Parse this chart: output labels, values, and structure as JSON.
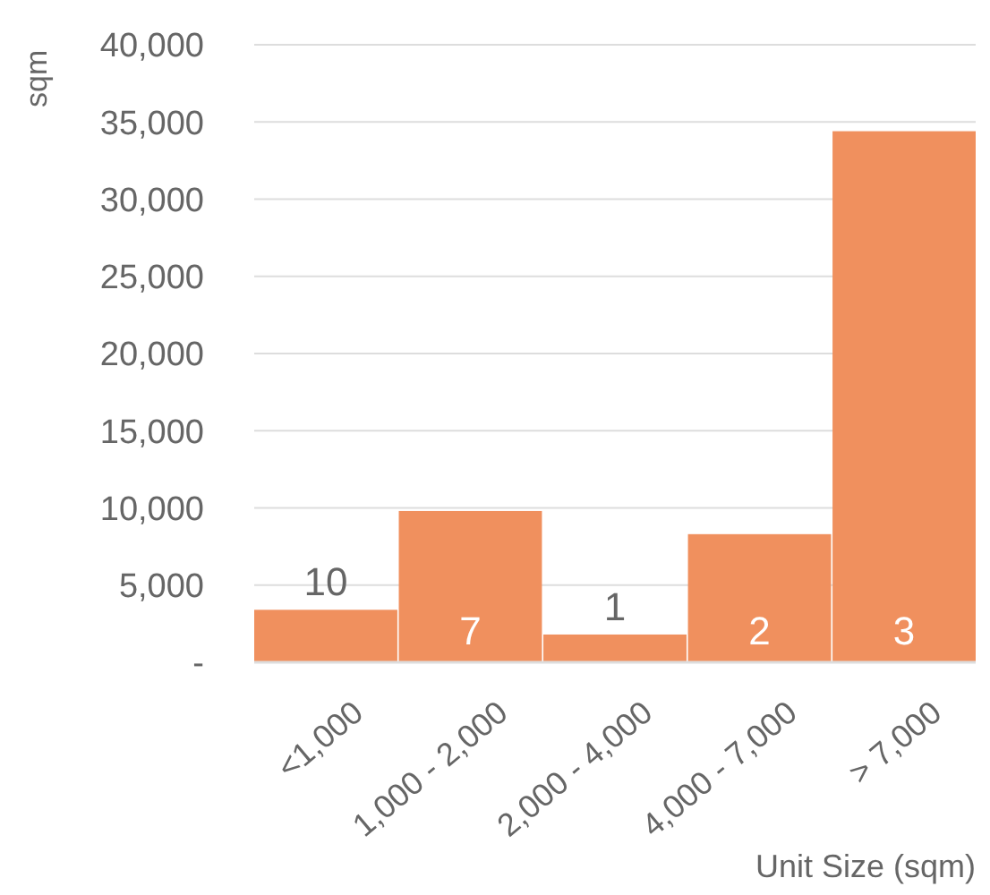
{
  "chart_data": {
    "type": "bar",
    "xlabel": "Unit Size (sqm)",
    "ylabel": "sqm",
    "categories": [
      "<1,000",
      "1,000 - 2,000",
      "2,000 - 4,000",
      "4,000 - 7,000",
      "> 7,000"
    ],
    "values": [
      3400,
      9800,
      1800,
      8300,
      34400
    ],
    "color": "#f0905e",
    "ylim": [
      0,
      40000
    ],
    "yticks": [
      {
        "value": 0,
        "label": "-"
      },
      {
        "value": 5000,
        "label": "5,000"
      },
      {
        "value": 10000,
        "label": "10,000"
      },
      {
        "value": 15000,
        "label": "15,000"
      },
      {
        "value": 20000,
        "label": "20,000"
      },
      {
        "value": 25000,
        "label": "25,000"
      },
      {
        "value": 30000,
        "label": "30,000"
      },
      {
        "value": 35000,
        "label": "35,000"
      },
      {
        "value": 40000,
        "label": "40,000"
      }
    ],
    "grid": "y",
    "annotations": [
      "10",
      "7",
      "1",
      "2",
      "3"
    ]
  }
}
